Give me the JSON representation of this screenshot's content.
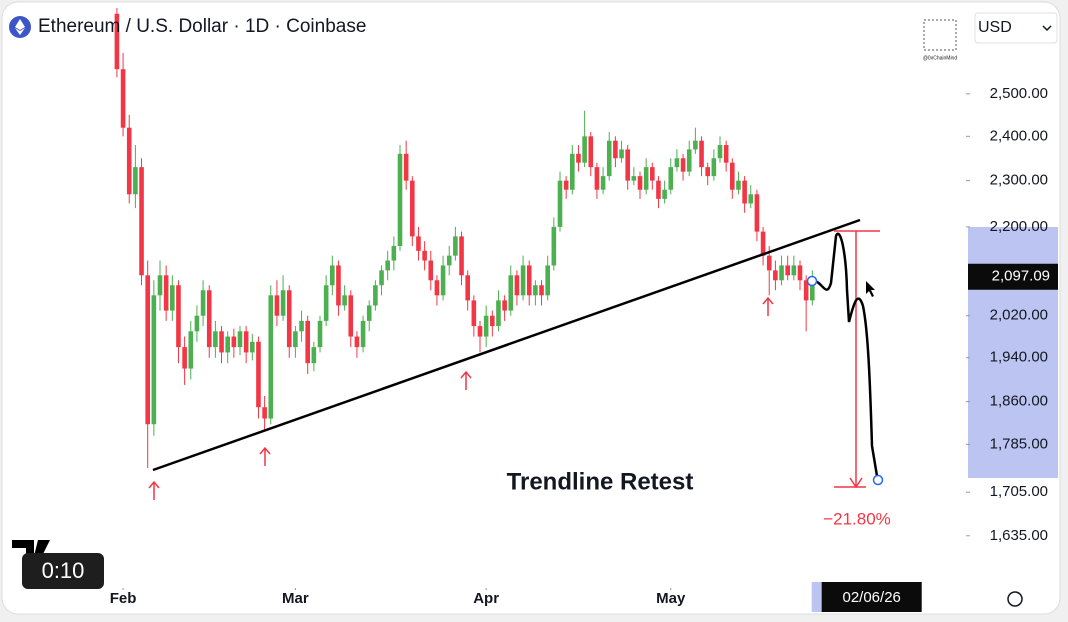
{
  "chart_data": {
    "type": "candlestick",
    "title": "Ethereum / U.S. Dollar · 1D · Coinbase",
    "up_color": "#4caf50",
    "down_color": "#f23645",
    "log_scale": true,
    "xlim": [
      12,
      168
    ],
    "ylim": [
      1552,
      2715
    ],
    "xticks": [
      {
        "value": 32,
        "label": "Feb"
      },
      {
        "value": 60,
        "label": "Mar"
      },
      {
        "value": 91,
        "label": "Apr"
      },
      {
        "value": 121,
        "label": "May"
      }
    ],
    "yticks": [
      {
        "value": 1635,
        "label": "1,635.00"
      },
      {
        "value": 1705,
        "label": "1,705.00"
      },
      {
        "value": 1785,
        "label": "1,785.00"
      },
      {
        "value": 1860,
        "label": "1,860.00"
      },
      {
        "value": 1940,
        "label": "1,940.00"
      },
      {
        "value": 2020,
        "label": "2,020.00"
      },
      {
        "value": 2200,
        "label": "2,200.00"
      },
      {
        "value": 2300,
        "label": "2,300.00"
      },
      {
        "value": 2400,
        "label": "2,400.00"
      },
      {
        "value": 2500,
        "label": "2,500.00"
      }
    ],
    "last_price": {
      "value": 2097.09,
      "label": "2,097.09"
    },
    "cursor_date": {
      "value": 153,
      "label": "02/06/26"
    },
    "annotations": {
      "pattern": "Trendline Retest",
      "target_change": "−21.80%"
    },
    "candles": [
      [
        31,
        2700,
        2715,
        2540,
        2560
      ],
      [
        32,
        2560,
        2600,
        2400,
        2420
      ],
      [
        33,
        2420,
        2450,
        2250,
        2270
      ],
      [
        34,
        2270,
        2380,
        2240,
        2330
      ],
      [
        35,
        2330,
        2350,
        2080,
        2100
      ],
      [
        36,
        2100,
        2130,
        1745,
        1820
      ],
      [
        37,
        1820,
        2090,
        1800,
        2060
      ],
      [
        38,
        2060,
        2130,
        2030,
        2100
      ],
      [
        39,
        2100,
        2120,
        2010,
        2030
      ],
      [
        40,
        2030,
        2100,
        2010,
        2080
      ],
      [
        41,
        2080,
        2090,
        1930,
        1960
      ],
      [
        42,
        1960,
        1980,
        1890,
        1920
      ],
      [
        43,
        1920,
        2010,
        1900,
        1990
      ],
      [
        44,
        1990,
        2040,
        1970,
        2020
      ],
      [
        45,
        2020,
        2090,
        2000,
        2070
      ],
      [
        46,
        2070,
        2080,
        1940,
        1960
      ],
      [
        47,
        1960,
        2010,
        1940,
        1990
      ],
      [
        48,
        1990,
        2000,
        1930,
        1950
      ],
      [
        49,
        1950,
        1990,
        1930,
        1980
      ],
      [
        50,
        1980,
        1995,
        1940,
        1960
      ],
      [
        51,
        1960,
        2000,
        1945,
        1990
      ],
      [
        52,
        1990,
        2000,
        1930,
        1950
      ],
      [
        53,
        1950,
        1985,
        1935,
        1970
      ],
      [
        54,
        1970,
        1980,
        1830,
        1850
      ],
      [
        55,
        1850,
        1870,
        1810,
        1830
      ],
      [
        56,
        1830,
        2080,
        1820,
        2060
      ],
      [
        57,
        2060,
        2090,
        2000,
        2020
      ],
      [
        58,
        2020,
        2100,
        2010,
        2070
      ],
      [
        59,
        2070,
        2080,
        1940,
        1960
      ],
      [
        60,
        1960,
        2000,
        1940,
        1990
      ],
      [
        61,
        1990,
        2030,
        1970,
        2010
      ],
      [
        62,
        2010,
        2020,
        1910,
        1930
      ],
      [
        63,
        1930,
        1970,
        1915,
        1960
      ],
      [
        64,
        1960,
        2020,
        1950,
        2010
      ],
      [
        65,
        2010,
        2100,
        2000,
        2080
      ],
      [
        66,
        2080,
        2140,
        2060,
        2120
      ],
      [
        67,
        2120,
        2130,
        2020,
        2040
      ],
      [
        68,
        2040,
        2080,
        2030,
        2060
      ],
      [
        69,
        2060,
        2070,
        1960,
        1980
      ],
      [
        70,
        1980,
        1990,
        1940,
        1960
      ],
      [
        71,
        1960,
        2020,
        1950,
        2010
      ],
      [
        72,
        2010,
        2050,
        1990,
        2040
      ],
      [
        73,
        2040,
        2090,
        2030,
        2080
      ],
      [
        74,
        2080,
        2120,
        2060,
        2110
      ],
      [
        75,
        2110,
        2150,
        2090,
        2130
      ],
      [
        76,
        2130,
        2180,
        2110,
        2160
      ],
      [
        77,
        2160,
        2380,
        2150,
        2360
      ],
      [
        78,
        2360,
        2390,
        2280,
        2300
      ],
      [
        79,
        2300,
        2310,
        2160,
        2180
      ],
      [
        80,
        2180,
        2200,
        2130,
        2150
      ],
      [
        81,
        2150,
        2170,
        2110,
        2130
      ],
      [
        82,
        2130,
        2150,
        2070,
        2090
      ],
      [
        83,
        2090,
        2100,
        2040,
        2060
      ],
      [
        84,
        2060,
        2140,
        2050,
        2120
      ],
      [
        85,
        2120,
        2160,
        2100,
        2140
      ],
      [
        86,
        2140,
        2200,
        2130,
        2180
      ],
      [
        87,
        2180,
        2190,
        2080,
        2100
      ],
      [
        88,
        2100,
        2110,
        2030,
        2050
      ],
      [
        89,
        2050,
        2060,
        1980,
        2000
      ],
      [
        90,
        2000,
        2010,
        1950,
        1980
      ],
      [
        91,
        1980,
        2040,
        1960,
        2020
      ],
      [
        92,
        2020,
        2030,
        1980,
        2000
      ],
      [
        93,
        2000,
        2070,
        1990,
        2050
      ],
      [
        94,
        2050,
        2060,
        2010,
        2030
      ],
      [
        95,
        2030,
        2120,
        2020,
        2100
      ],
      [
        96,
        2100,
        2110,
        2040,
        2060
      ],
      [
        97,
        2060,
        2140,
        2050,
        2120
      ],
      [
        98,
        2120,
        2130,
        2040,
        2060
      ],
      [
        99,
        2060,
        2090,
        2040,
        2080
      ],
      [
        100,
        2080,
        2090,
        2040,
        2060
      ],
      [
        101,
        2060,
        2140,
        2050,
        2120
      ],
      [
        102,
        2120,
        2220,
        2110,
        2200
      ],
      [
        103,
        2200,
        2320,
        2190,
        2300
      ],
      [
        104,
        2300,
        2310,
        2260,
        2280
      ],
      [
        105,
        2280,
        2380,
        2270,
        2360
      ],
      [
        106,
        2360,
        2380,
        2320,
        2340
      ],
      [
        107,
        2340,
        2460,
        2330,
        2400
      ],
      [
        108,
        2400,
        2410,
        2310,
        2330
      ],
      [
        109,
        2330,
        2340,
        2260,
        2280
      ],
      [
        110,
        2280,
        2330,
        2270,
        2310
      ],
      [
        111,
        2310,
        2410,
        2300,
        2390
      ],
      [
        112,
        2390,
        2400,
        2330,
        2350
      ],
      [
        113,
        2350,
        2390,
        2340,
        2370
      ],
      [
        114,
        2370,
        2380,
        2280,
        2300
      ],
      [
        115,
        2300,
        2330,
        2290,
        2310
      ],
      [
        116,
        2310,
        2320,
        2260,
        2280
      ],
      [
        117,
        2280,
        2350,
        2270,
        2330
      ],
      [
        118,
        2330,
        2340,
        2280,
        2300
      ],
      [
        119,
        2300,
        2310,
        2240,
        2260
      ],
      [
        120,
        2260,
        2300,
        2250,
        2280
      ],
      [
        121,
        2280,
        2350,
        2270,
        2330
      ],
      [
        122,
        2330,
        2370,
        2320,
        2350
      ],
      [
        123,
        2350,
        2360,
        2300,
        2320
      ],
      [
        124,
        2320,
        2390,
        2310,
        2370
      ],
      [
        125,
        2370,
        2420,
        2360,
        2390
      ],
      [
        126,
        2390,
        2400,
        2310,
        2330
      ],
      [
        127,
        2330,
        2340,
        2290,
        2310
      ],
      [
        128,
        2310,
        2370,
        2300,
        2350
      ],
      [
        129,
        2350,
        2400,
        2340,
        2380
      ],
      [
        130,
        2380,
        2390,
        2320,
        2340
      ],
      [
        131,
        2340,
        2350,
        2260,
        2280
      ],
      [
        132,
        2280,
        2320,
        2270,
        2300
      ],
      [
        133,
        2300,
        2310,
        2230,
        2250
      ],
      [
        134,
        2250,
        2290,
        2240,
        2270
      ],
      [
        135,
        2270,
        2280,
        2170,
        2190
      ],
      [
        136,
        2190,
        2200,
        2120,
        2140
      ],
      [
        137,
        2140,
        2160,
        2060,
        2110
      ],
      [
        138,
        2110,
        2130,
        2070,
        2090
      ],
      [
        139,
        2090,
        2140,
        2080,
        2120
      ],
      [
        140,
        2120,
        2140,
        2090,
        2100
      ],
      [
        141,
        2100,
        2140,
        2090,
        2120
      ],
      [
        142,
        2120,
        2130,
        2070,
        2090
      ],
      [
        143,
        2090,
        2100,
        1990,
        2050
      ],
      [
        144,
        2050,
        2110,
        2040,
        2097.09
      ]
    ]
  },
  "ui": {
    "currency": "USD",
    "watermark": "@0xChainMind",
    "video_time": "0:10"
  }
}
